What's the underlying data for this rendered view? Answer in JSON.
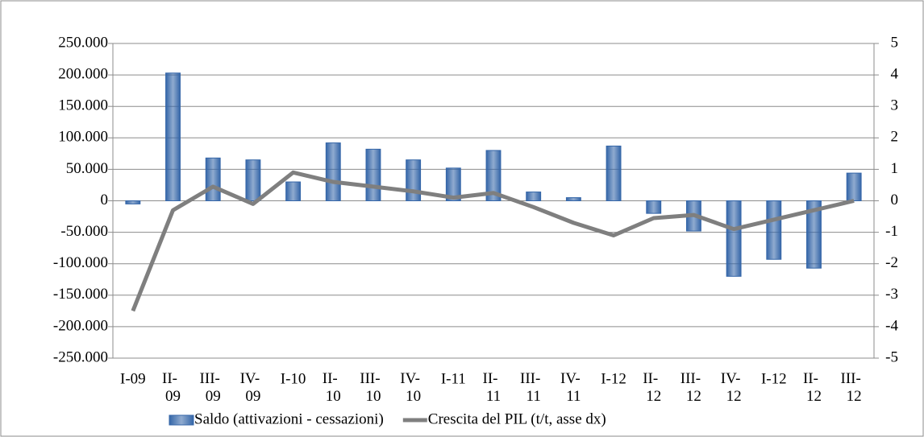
{
  "chart_data": {
    "type": "bar-line",
    "categories": [
      "I-09",
      "II-09",
      "III-09",
      "IV-09",
      "I-10",
      "II-10",
      "III-10",
      "IV-10",
      "I-11",
      "II-11",
      "III-11",
      "IV-11",
      "I-12",
      "II-12",
      "III-12",
      "IV-12",
      "I-12",
      "II-12",
      "III-12"
    ],
    "series": [
      {
        "name": "Saldo (attivazioni - cessazioni)",
        "type": "bar",
        "color": "#3566a8",
        "values": [
          -5000,
          203000,
          68000,
          65000,
          30000,
          92000,
          82000,
          65000,
          52000,
          80000,
          14000,
          5000,
          87000,
          -20000,
          -48000,
          -120000,
          -93000,
          -107000,
          44000
        ]
      },
      {
        "name": "Crescita del PIL (t/t, asse dx)",
        "type": "line",
        "axis": "y2",
        "color": "#7f7f7f",
        "values": [
          -3.5,
          -0.3,
          0.45,
          -0.1,
          0.9,
          0.6,
          0.45,
          0.3,
          0.1,
          0.25,
          -0.2,
          -0.7,
          -1.1,
          -0.55,
          -0.45,
          -0.9,
          -0.6,
          -0.3,
          0.0
        ]
      }
    ],
    "ylim": [
      -250000,
      250000
    ],
    "yticks": [
      {
        "value": -250000,
        "label": "-250.000"
      },
      {
        "value": -200000,
        "label": "-200.000"
      },
      {
        "value": -150000,
        "label": "-150.000"
      },
      {
        "value": -100000,
        "label": "-100.000"
      },
      {
        "value": -50000,
        "label": "-50.000"
      },
      0,
      {
        "value": 50000,
        "label": "50.000"
      },
      {
        "value": 100000,
        "label": "100.000"
      },
      {
        "value": 150000,
        "label": "150.000"
      },
      {
        "value": 200000,
        "label": "200.000"
      },
      {
        "value": 250000,
        "label": "250.000"
      }
    ],
    "y2lim": [
      -5,
      5
    ],
    "y2ticks": [
      -5,
      -4,
      -3,
      -2,
      -1,
      0,
      1,
      2,
      3,
      4,
      5
    ],
    "grid": true,
    "legend": "bottom"
  }
}
